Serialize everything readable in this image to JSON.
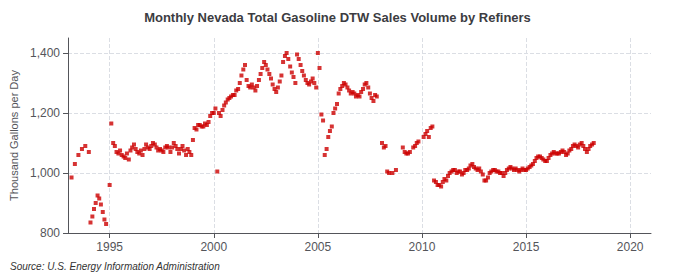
{
  "chart_data": {
    "type": "scatter",
    "title": "Monthly Nevada Total Gasoline DTW Sales Volume by Refiners",
    "ylabel": "Thousand Gallons per Day",
    "annotations": [
      "Source: U.S. Energy Information Administration"
    ],
    "color": "#cc0000",
    "marker": "square",
    "grid": true,
    "xlim": [
      1993.0,
      2021.0
    ],
    "xticks": [
      1995,
      2000,
      2005,
      2010,
      2015,
      2020
    ],
    "ylim": [
      800,
      1450
    ],
    "yticks": [
      800,
      {
        "value": 1000,
        "label": "1,000"
      },
      {
        "value": 1200,
        "label": "1,200"
      },
      {
        "value": 1400,
        "label": "1,400"
      }
    ],
    "x": [
      1993.17,
      1993.33,
      1993.5,
      1993.67,
      1993.83,
      1994.0,
      1994.08,
      1994.17,
      1994.25,
      1994.33,
      1994.42,
      1994.5,
      1994.58,
      1994.67,
      1994.75,
      1994.83,
      1995.0,
      1995.08,
      1995.17,
      1995.25,
      1995.33,
      1995.42,
      1995.5,
      1995.58,
      1995.67,
      1995.75,
      1995.83,
      1995.92,
      1996.0,
      1996.08,
      1996.17,
      1996.25,
      1996.33,
      1996.42,
      1996.5,
      1996.58,
      1996.67,
      1996.75,
      1996.83,
      1996.92,
      1997.0,
      1997.08,
      1997.17,
      1997.25,
      1997.33,
      1997.42,
      1997.5,
      1997.58,
      1997.67,
      1997.75,
      1997.83,
      1997.92,
      1998.0,
      1998.08,
      1998.17,
      1998.25,
      1998.33,
      1998.42,
      1998.5,
      1998.58,
      1998.67,
      1998.75,
      1998.83,
      1998.92,
      1999.0,
      1999.08,
      1999.17,
      1999.25,
      1999.33,
      1999.42,
      1999.5,
      1999.58,
      1999.67,
      1999.75,
      1999.83,
      1999.92,
      2000.0,
      2000.08,
      2000.17,
      2000.25,
      2000.33,
      2000.42,
      2000.5,
      2000.58,
      2000.67,
      2000.75,
      2000.83,
      2000.92,
      2001.0,
      2001.08,
      2001.17,
      2001.25,
      2001.33,
      2001.42,
      2001.5,
      2001.58,
      2001.67,
      2001.75,
      2001.83,
      2001.92,
      2002.0,
      2002.08,
      2002.17,
      2002.25,
      2002.33,
      2002.42,
      2002.5,
      2002.58,
      2002.67,
      2002.75,
      2002.83,
      2002.92,
      2003.0,
      2003.08,
      2003.17,
      2003.25,
      2003.33,
      2003.42,
      2003.5,
      2003.58,
      2003.67,
      2003.75,
      2003.83,
      2003.92,
      2004.0,
      2004.08,
      2004.17,
      2004.25,
      2004.33,
      2004.42,
      2004.5,
      2004.58,
      2004.67,
      2004.75,
      2004.83,
      2004.92,
      2005.0,
      2005.08,
      2005.17,
      2005.25,
      2005.33,
      2005.42,
      2005.5,
      2005.58,
      2005.67,
      2005.75,
      2005.83,
      2005.92,
      2006.0,
      2006.08,
      2006.17,
      2006.25,
      2006.33,
      2006.42,
      2006.5,
      2006.58,
      2006.67,
      2006.75,
      2006.83,
      2006.92,
      2007.0,
      2007.08,
      2007.17,
      2007.25,
      2007.33,
      2007.42,
      2007.5,
      2007.58,
      2007.67,
      2007.75,
      2007.83,
      2008.08,
      2008.17,
      2008.25,
      2008.33,
      2008.42,
      2008.58,
      2008.75,
      2009.08,
      2009.17,
      2009.25,
      2009.33,
      2009.42,
      2009.58,
      2009.67,
      2009.75,
      2009.83,
      2010.08,
      2010.17,
      2010.25,
      2010.33,
      2010.42,
      2010.5,
      2010.58,
      2010.67,
      2010.75,
      2010.83,
      2010.92,
      2011.0,
      2011.08,
      2011.17,
      2011.25,
      2011.33,
      2011.42,
      2011.5,
      2011.58,
      2011.67,
      2011.75,
      2011.83,
      2011.92,
      2012.0,
      2012.08,
      2012.17,
      2012.25,
      2012.33,
      2012.42,
      2012.5,
      2012.58,
      2012.67,
      2012.75,
      2012.83,
      2012.92,
      2013.0,
      2013.08,
      2013.17,
      2013.25,
      2013.33,
      2013.42,
      2013.5,
      2013.58,
      2013.67,
      2013.75,
      2013.83,
      2013.92,
      2014.0,
      2014.08,
      2014.17,
      2014.25,
      2014.33,
      2014.42,
      2014.5,
      2014.58,
      2014.67,
      2014.75,
      2014.83,
      2014.92,
      2015.0,
      2015.08,
      2015.17,
      2015.25,
      2015.33,
      2015.42,
      2015.5,
      2015.58,
      2015.67,
      2015.75,
      2015.83,
      2015.92,
      2016.0,
      2016.08,
      2016.17,
      2016.25,
      2016.33,
      2016.42,
      2016.5,
      2016.58,
      2016.67,
      2016.75,
      2016.83,
      2016.92,
      2017.0,
      2017.08,
      2017.17,
      2017.25,
      2017.33,
      2017.42,
      2017.5,
      2017.58,
      2017.67,
      2017.75,
      2017.83,
      2017.92,
      2018.0,
      2018.08,
      2018.17,
      2018.25
    ],
    "values": [
      985,
      1030,
      1060,
      1080,
      1090,
      1070,
      835,
      855,
      880,
      900,
      925,
      915,
      895,
      870,
      845,
      830,
      960,
      1165,
      1100,
      1090,
      1070,
      1065,
      1075,
      1060,
      1055,
      1050,
      1065,
      1045,
      1075,
      1085,
      1095,
      1080,
      1070,
      1065,
      1075,
      1060,
      1080,
      1095,
      1085,
      1080,
      1090,
      1100,
      1095,
      1085,
      1075,
      1080,
      1075,
      1070,
      1085,
      1090,
      1085,
      1070,
      1085,
      1100,
      1090,
      1080,
      1065,
      1080,
      1090,
      1075,
      1060,
      1080,
      1070,
      1060,
      1110,
      1150,
      1145,
      1160,
      1160,
      1155,
      1155,
      1165,
      1160,
      1170,
      1190,
      1200,
      1200,
      1215,
      1005,
      1200,
      1190,
      1210,
      1225,
      1235,
      1245,
      1250,
      1255,
      1260,
      1260,
      1275,
      1280,
      1300,
      1325,
      1345,
      1360,
      1310,
      1290,
      1285,
      1295,
      1285,
      1275,
      1290,
      1310,
      1330,
      1350,
      1370,
      1360,
      1345,
      1330,
      1315,
      1295,
      1280,
      1270,
      1285,
      1305,
      1325,
      1370,
      1390,
      1400,
      1380,
      1355,
      1335,
      1320,
      1300,
      1395,
      1380,
      1360,
      1340,
      1325,
      1310,
      1300,
      1295,
      1305,
      1315,
      1300,
      1285,
      1400,
      1350,
      1195,
      1175,
      1060,
      1080,
      1120,
      1140,
      1155,
      1200,
      1215,
      1230,
      1265,
      1280,
      1290,
      1300,
      1295,
      1285,
      1275,
      1265,
      1270,
      1265,
      1255,
      1260,
      1255,
      1270,
      1280,
      1295,
      1300,
      1285,
      1265,
      1250,
      1240,
      1260,
      1255,
      1100,
      1085,
      1090,
      1005,
      1000,
      1000,
      1010,
      1085,
      1070,
      1065,
      1065,
      1070,
      1085,
      1090,
      1100,
      1105,
      1120,
      1130,
      1140,
      1120,
      1150,
      1155,
      975,
      970,
      960,
      960,
      955,
      970,
      980,
      975,
      990,
      1000,
      1005,
      1010,
      1010,
      1000,
      1005,
      1005,
      995,
      1000,
      1010,
      1010,
      1015,
      1025,
      1030,
      1020,
      1015,
      1010,
      1015,
      1005,
      995,
      975,
      975,
      985,
      1000,
      1005,
      1010,
      1010,
      1005,
      1005,
      1000,
      1000,
      990,
      1000,
      1010,
      1015,
      1020,
      1015,
      1010,
      1015,
      1010,
      1005,
      1010,
      1015,
      1010,
      1010,
      1015,
      1020,
      1025,
      1030,
      1040,
      1050,
      1055,
      1055,
      1050,
      1045,
      1040,
      1040,
      1050,
      1060,
      1065,
      1070,
      1065,
      1065,
      1065,
      1070,
      1075,
      1070,
      1060,
      1065,
      1075,
      1080,
      1090,
      1095,
      1090,
      1085,
      1095,
      1100,
      1090,
      1080,
      1070,
      1080,
      1090,
      1095,
      1100
    ]
  }
}
